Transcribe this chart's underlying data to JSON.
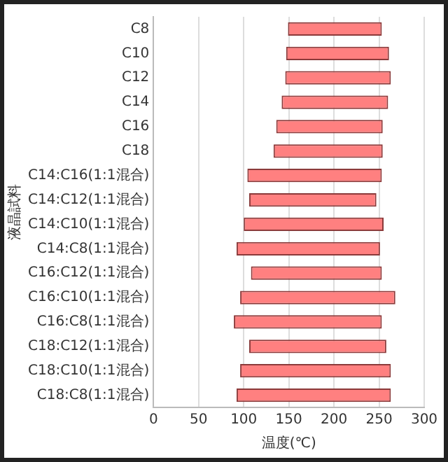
{
  "chart_data": {
    "type": "bar",
    "orientation": "horizontal",
    "xlabel": "温度(℃)",
    "ylabel": "液晶試料",
    "categories": [
      "C8",
      "C10",
      "C12",
      "C14",
      "C16",
      "C18",
      "C14:C16(1:1混合)",
      "C14:C12(1:1混合)",
      "C14:C10(1:1混合)",
      "C14:C8(1:1混合)",
      "C16:C12(1:1混合)",
      "C16:C10(1:1混合)",
      "C16:C8(1:1混合)",
      "C18:C12(1:1混合)",
      "C18:C10(1:1混合)",
      "C18:C8(1:1混合)"
    ],
    "base": [
      149,
      147,
      146,
      142,
      136,
      133,
      104,
      106,
      100,
      92,
      108,
      96,
      89,
      106,
      96,
      92
    ],
    "values": [
      104,
      114,
      117,
      118,
      118,
      121,
      149,
      141,
      155,
      159,
      145,
      172,
      164,
      152,
      167,
      171
    ],
    "color": "#ff8080",
    "xlim": [
      0,
      300
    ],
    "xticks": [
      0,
      50,
      100,
      150,
      200,
      250,
      300
    ],
    "grid": "x",
    "legend": false
  }
}
